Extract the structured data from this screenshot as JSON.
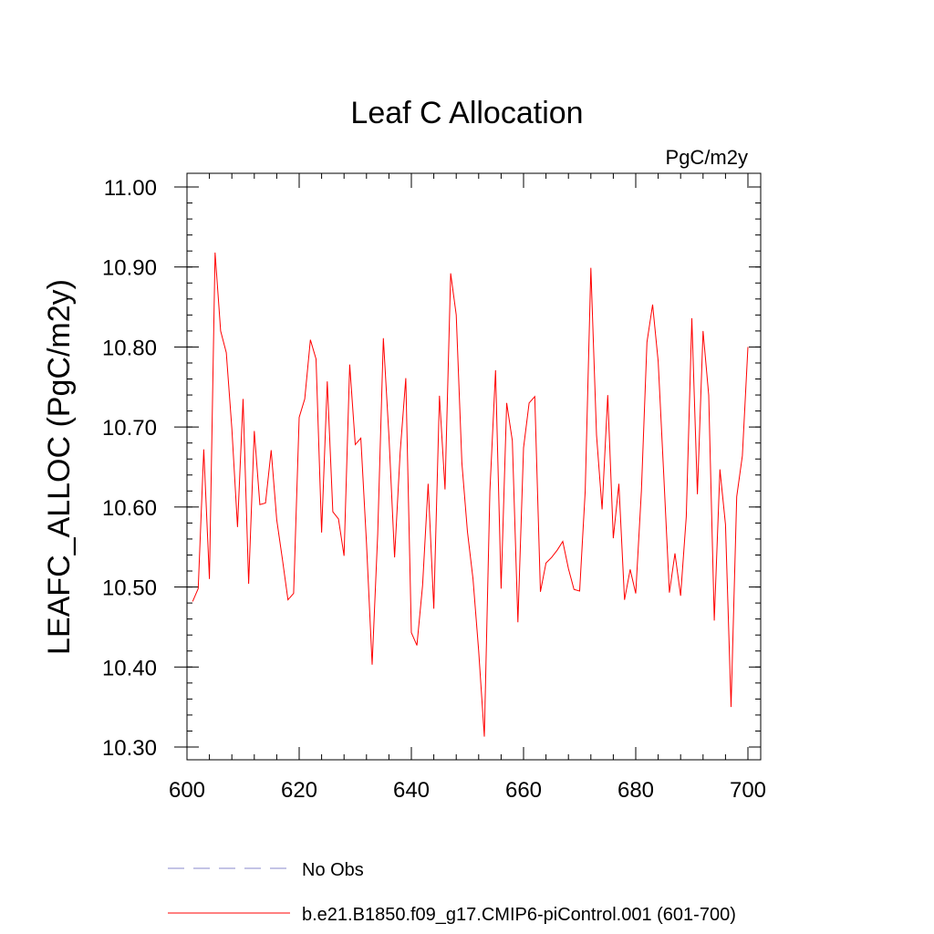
{
  "chart_data": {
    "type": "line",
    "title": "Leaf C Allocation",
    "units_label": "PgC/m2y",
    "ylabel": "LEAFC_ALLOC  (PgC/m2y)",
    "xlabel": "",
    "xlim": [
      600,
      700
    ],
    "ylim": [
      10.3,
      11.0
    ],
    "x_ticks": [
      "600",
      "620",
      "640",
      "660",
      "680",
      "700"
    ],
    "y_ticks": [
      "10.30",
      "10.40",
      "10.50",
      "10.60",
      "10.70",
      "10.80",
      "10.90",
      "11.00"
    ],
    "grid": false,
    "series": [
      {
        "name": "b.e21.B1850.f09_g17.CMIP6-piControl.001 (601-700)",
        "color": "#ff0000",
        "x": [
          601,
          602,
          603,
          604,
          605,
          606,
          607,
          608,
          609,
          610,
          611,
          612,
          613,
          614,
          615,
          616,
          617,
          618,
          619,
          620,
          621,
          622,
          623,
          624,
          625,
          626,
          627,
          628,
          629,
          630,
          631,
          632,
          633,
          634,
          635,
          636,
          637,
          638,
          639,
          640,
          641,
          642,
          643,
          644,
          645,
          646,
          647,
          648,
          649,
          650,
          651,
          652,
          653,
          654,
          655,
          656,
          657,
          658,
          659,
          660,
          661,
          662,
          663,
          664,
          665,
          666,
          667,
          668,
          669,
          670,
          671,
          672,
          673,
          674,
          675,
          676,
          677,
          678,
          679,
          680,
          681,
          682,
          683,
          684,
          685,
          686,
          687,
          688,
          689,
          690,
          691,
          692,
          693,
          694,
          695,
          696,
          697,
          698,
          699,
          700
        ],
        "values": [
          10.482,
          10.498,
          10.672,
          10.51,
          10.918,
          10.82,
          10.793,
          10.698,
          10.575,
          10.735,
          10.504,
          10.695,
          10.603,
          10.605,
          10.671,
          10.584,
          10.535,
          10.484,
          10.492,
          10.712,
          10.735,
          10.809,
          10.785,
          10.568,
          10.757,
          10.594,
          10.585,
          10.539,
          10.778,
          10.678,
          10.686,
          10.555,
          10.403,
          10.566,
          10.811,
          10.689,
          10.537,
          10.668,
          10.761,
          10.443,
          10.427,
          10.502,
          10.629,
          10.473,
          10.739,
          10.622,
          10.892,
          10.84,
          10.655,
          10.569,
          10.51,
          10.42,
          10.313,
          10.62,
          10.771,
          10.498,
          10.73,
          10.683,
          10.456,
          10.674,
          10.73,
          10.738,
          10.494,
          10.53,
          10.537,
          10.546,
          10.557,
          10.523,
          10.497,
          10.495,
          10.62,
          10.899,
          10.69,
          10.597,
          10.74,
          10.561,
          10.629,
          10.484,
          10.522,
          10.492,
          10.62,
          10.806,
          10.853,
          10.782,
          10.638,
          10.493,
          10.542,
          10.489,
          10.588,
          10.836,
          10.616,
          10.82,
          10.74,
          10.458,
          10.647,
          10.578,
          10.35,
          10.613,
          10.664,
          10.8
        ]
      }
    ],
    "legend": {
      "placement": "bottom-left",
      "entries": [
        {
          "label": "No Obs",
          "color": "#8888cc",
          "style": "dashed"
        },
        {
          "label": "b.e21.B1850.f09_g17.CMIP6-piControl.001 (601-700)",
          "color": "#ff0000",
          "style": "solid"
        }
      ]
    }
  }
}
